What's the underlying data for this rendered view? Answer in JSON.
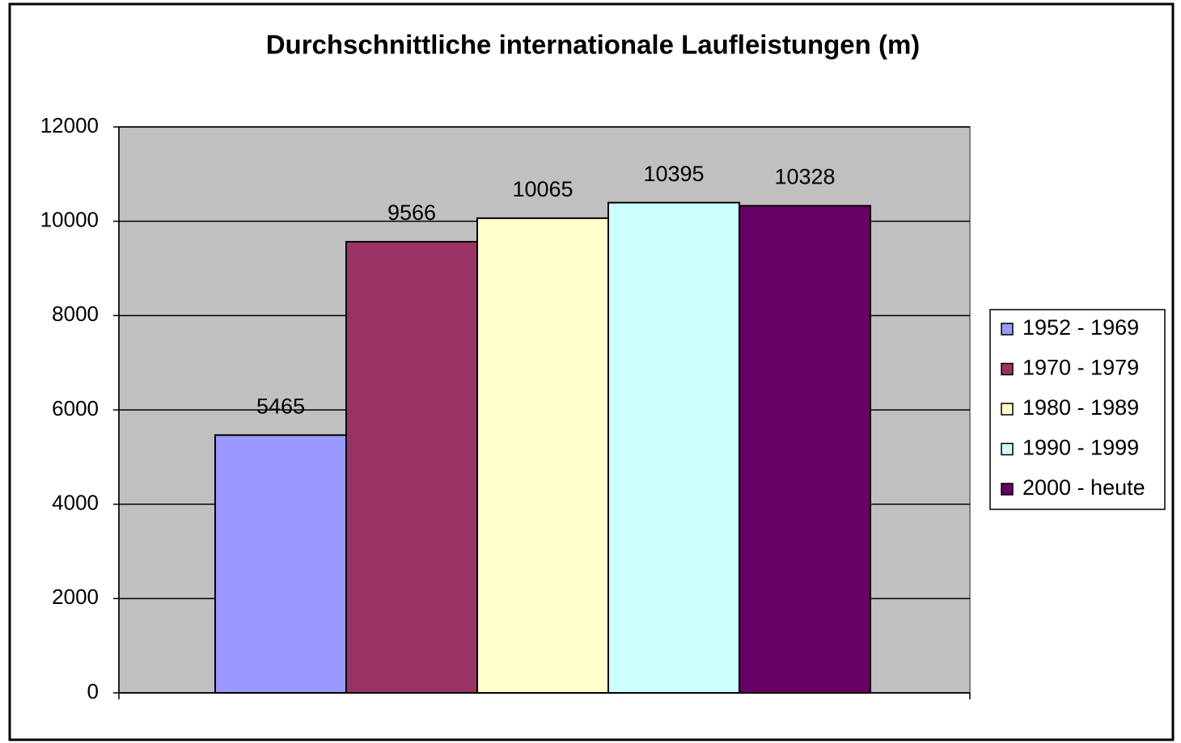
{
  "chart_data": {
    "type": "bar",
    "title": "Durchschnittliche internationale Laufleistungen (m)",
    "categories": [
      null
    ],
    "series": [
      {
        "name": "1952 - 1969",
        "color": "#9999ff",
        "values": [
          5465
        ]
      },
      {
        "name": "1970 - 1979",
        "color": "#993366",
        "values": [
          9566
        ]
      },
      {
        "name": "1980 - 1989",
        "color": "#ffffcc",
        "values": [
          10065
        ]
      },
      {
        "name": "1990 - 1999",
        "color": "#ccffff",
        "values": [
          10395
        ]
      },
      {
        "name": "2000 - heute",
        "color": "#660066",
        "values": [
          10328
        ]
      }
    ],
    "ylim": [
      0,
      12000
    ],
    "yticks": [
      0,
      2000,
      4000,
      6000,
      8000,
      10000,
      12000
    ],
    "grid": true,
    "legend": "right",
    "plot_background": "#c0c0c0"
  }
}
